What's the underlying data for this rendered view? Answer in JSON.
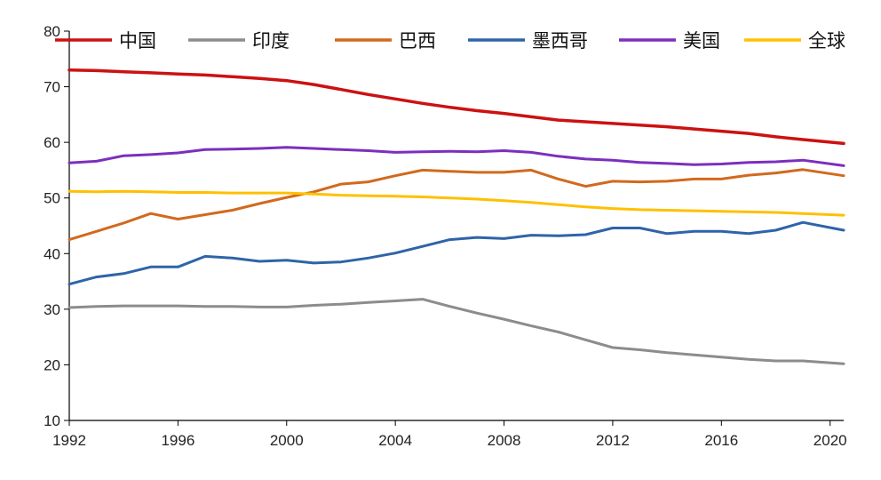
{
  "chart_data": {
    "type": "line",
    "title": "",
    "xlabel": "",
    "ylabel": "",
    "xlim": [
      1992,
      2020.5
    ],
    "ylim": [
      10,
      80
    ],
    "x_ticks": [
      1992,
      1996,
      2000,
      2004,
      2008,
      2012,
      2016,
      2020
    ],
    "y_ticks": [
      10,
      20,
      30,
      40,
      50,
      60,
      70,
      80
    ],
    "grid": false,
    "legend_position": "top",
    "series": [
      {
        "name": "中国",
        "color": "#cc1111",
        "points": [
          [
            1992,
            73
          ],
          [
            1993,
            72.9
          ],
          [
            1994,
            72.7
          ],
          [
            1995,
            72.5
          ],
          [
            1996,
            72.3
          ],
          [
            1997,
            72.1
          ],
          [
            1998,
            71.8
          ],
          [
            1999,
            71.5
          ],
          [
            2000,
            71.1
          ],
          [
            2001,
            70.4
          ],
          [
            2002,
            69.5
          ],
          [
            2003,
            68.6
          ],
          [
            2004,
            67.8
          ],
          [
            2005,
            67
          ],
          [
            2006,
            66.3
          ],
          [
            2007,
            65.7
          ],
          [
            2008,
            65.2
          ],
          [
            2009,
            64.6
          ],
          [
            2010,
            64
          ],
          [
            2011,
            63.7
          ],
          [
            2012,
            63.4
          ],
          [
            2013,
            63.1
          ],
          [
            2014,
            62.8
          ],
          [
            2015,
            62.4
          ],
          [
            2016,
            62
          ],
          [
            2017,
            61.6
          ],
          [
            2018,
            61
          ],
          [
            2019,
            60.5
          ],
          [
            2020.5,
            59.8
          ]
        ]
      },
      {
        "name": "印度",
        "color": "#8c8c8c",
        "points": [
          [
            1992,
            30.3
          ],
          [
            1993,
            30.5
          ],
          [
            1994,
            30.6
          ],
          [
            1995,
            30.6
          ],
          [
            1996,
            30.6
          ],
          [
            1997,
            30.5
          ],
          [
            1998,
            30.5
          ],
          [
            1999,
            30.4
          ],
          [
            2000,
            30.4
          ],
          [
            2001,
            30.7
          ],
          [
            2002,
            30.9
          ],
          [
            2003,
            31.2
          ],
          [
            2004,
            31.5
          ],
          [
            2005,
            31.8
          ],
          [
            2006,
            30.5
          ],
          [
            2007,
            29.3
          ],
          [
            2008,
            28.2
          ],
          [
            2009,
            27
          ],
          [
            2010,
            25.9
          ],
          [
            2011,
            24.5
          ],
          [
            2012,
            23.1
          ],
          [
            2013,
            22.7
          ],
          [
            2014,
            22.2
          ],
          [
            2015,
            21.8
          ],
          [
            2016,
            21.4
          ],
          [
            2017,
            21
          ],
          [
            2018,
            20.7
          ],
          [
            2019,
            20.7
          ],
          [
            2020.5,
            20.2
          ]
        ]
      },
      {
        "name": "巴西",
        "color": "#d2691e",
        "points": [
          [
            1992,
            42.5
          ],
          [
            1993,
            44
          ],
          [
            1994,
            45.5
          ],
          [
            1995,
            47.2
          ],
          [
            1996,
            46.2
          ],
          [
            1997,
            47
          ],
          [
            1998,
            47.8
          ],
          [
            1999,
            49
          ],
          [
            2000,
            50.1
          ],
          [
            2001,
            51.1
          ],
          [
            2002,
            52.5
          ],
          [
            2003,
            52.9
          ],
          [
            2004,
            54
          ],
          [
            2005,
            55
          ],
          [
            2006,
            54.8
          ],
          [
            2007,
            54.6
          ],
          [
            2008,
            54.6
          ],
          [
            2009,
            55
          ],
          [
            2010,
            53.4
          ],
          [
            2011,
            52.1
          ],
          [
            2012,
            53
          ],
          [
            2013,
            52.9
          ],
          [
            2014,
            53
          ],
          [
            2015,
            53.4
          ],
          [
            2016,
            53.4
          ],
          [
            2017,
            54.1
          ],
          [
            2018,
            54.5
          ],
          [
            2019,
            55.1
          ],
          [
            2020.5,
            54
          ]
        ]
      },
      {
        "name": "墨西哥",
        "color": "#2e64a8",
        "points": [
          [
            1992,
            34.5
          ],
          [
            1993,
            35.8
          ],
          [
            1994,
            36.4
          ],
          [
            1995,
            37.6
          ],
          [
            1996,
            37.6
          ],
          [
            1997,
            39.5
          ],
          [
            1998,
            39.2
          ],
          [
            1999,
            38.6
          ],
          [
            2000,
            38.8
          ],
          [
            2001,
            38.3
          ],
          [
            2002,
            38.5
          ],
          [
            2003,
            39.2
          ],
          [
            2004,
            40.1
          ],
          [
            2005,
            41.3
          ],
          [
            2006,
            42.5
          ],
          [
            2007,
            42.9
          ],
          [
            2008,
            42.7
          ],
          [
            2009,
            43.3
          ],
          [
            2010,
            43.2
          ],
          [
            2011,
            43.4
          ],
          [
            2012,
            44.6
          ],
          [
            2013,
            44.6
          ],
          [
            2014,
            43.6
          ],
          [
            2015,
            44
          ],
          [
            2016,
            44
          ],
          [
            2017,
            43.6
          ],
          [
            2018,
            44.2
          ],
          [
            2019,
            45.6
          ],
          [
            2020.5,
            44.2
          ]
        ]
      },
      {
        "name": "美国",
        "color": "#7b2fbe",
        "points": [
          [
            1992,
            56.3
          ],
          [
            1993,
            56.6
          ],
          [
            1994,
            57.6
          ],
          [
            1995,
            57.8
          ],
          [
            1996,
            58.1
          ],
          [
            1997,
            58.7
          ],
          [
            1998,
            58.8
          ],
          [
            1999,
            58.9
          ],
          [
            2000,
            59.1
          ],
          [
            2001,
            58.9
          ],
          [
            2002,
            58.7
          ],
          [
            2003,
            58.5
          ],
          [
            2004,
            58.2
          ],
          [
            2005,
            58.3
          ],
          [
            2006,
            58.4
          ],
          [
            2007,
            58.3
          ],
          [
            2008,
            58.5
          ],
          [
            2009,
            58.2
          ],
          [
            2010,
            57.5
          ],
          [
            2011,
            57
          ],
          [
            2012,
            56.8
          ],
          [
            2013,
            56.4
          ],
          [
            2014,
            56.2
          ],
          [
            2015,
            56
          ],
          [
            2016,
            56.1
          ],
          [
            2017,
            56.4
          ],
          [
            2018,
            56.5
          ],
          [
            2019,
            56.8
          ],
          [
            2020.5,
            55.8
          ]
        ]
      },
      {
        "name": "全球",
        "color": "#ffc000",
        "points": [
          [
            1992,
            51.2
          ],
          [
            1993,
            51.1
          ],
          [
            1994,
            51.2
          ],
          [
            1995,
            51.1
          ],
          [
            1996,
            51
          ],
          [
            1997,
            51
          ],
          [
            1998,
            50.9
          ],
          [
            1999,
            50.9
          ],
          [
            2000,
            50.9
          ],
          [
            2001,
            50.7
          ],
          [
            2002,
            50.5
          ],
          [
            2003,
            50.4
          ],
          [
            2004,
            50.3
          ],
          [
            2005,
            50.2
          ],
          [
            2006,
            50
          ],
          [
            2007,
            49.8
          ],
          [
            2008,
            49.5
          ],
          [
            2009,
            49.2
          ],
          [
            2010,
            48.8
          ],
          [
            2011,
            48.4
          ],
          [
            2012,
            48.1
          ],
          [
            2013,
            47.9
          ],
          [
            2014,
            47.8
          ],
          [
            2015,
            47.7
          ],
          [
            2016,
            47.6
          ],
          [
            2017,
            47.5
          ],
          [
            2018,
            47.4
          ],
          [
            2019,
            47.2
          ],
          [
            2020.5,
            46.9
          ]
        ]
      }
    ]
  }
}
